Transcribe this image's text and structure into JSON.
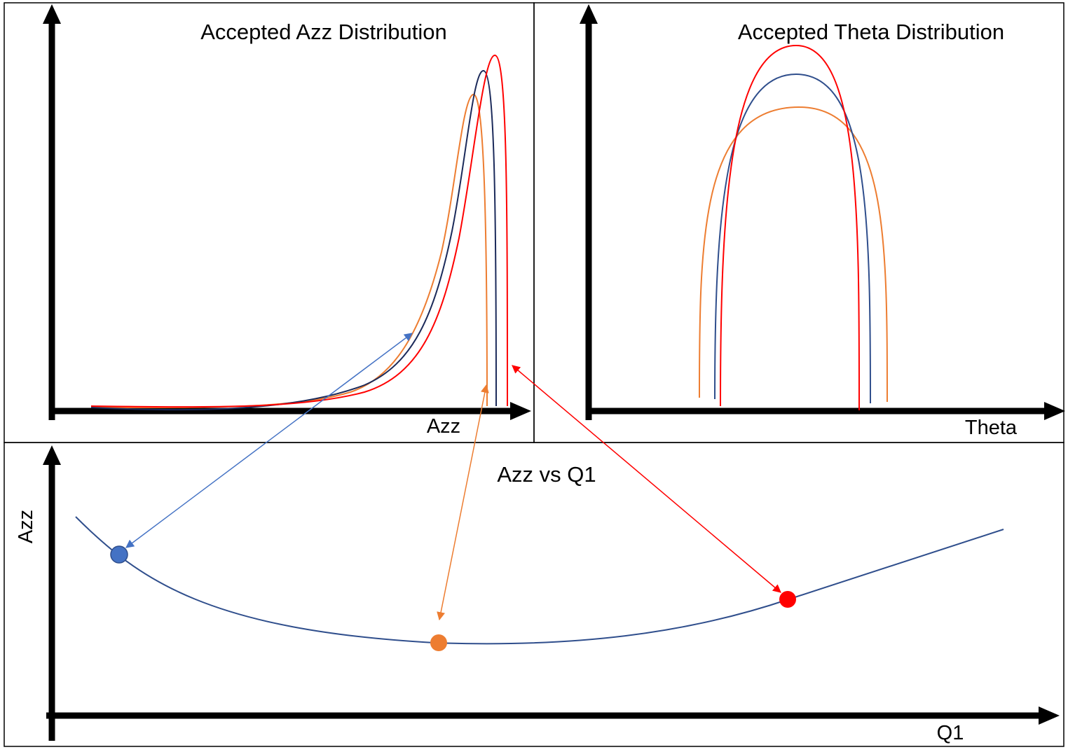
{
  "panels": {
    "azz_distribution": {
      "title": "Accepted Azz Distribution",
      "xlabel": "Azz"
    },
    "theta_distribution": {
      "title": "Accepted Theta Distribution",
      "xlabel": "Theta"
    },
    "azz_vs_q1": {
      "title": "Azz vs Q1",
      "xlabel": "Q1",
      "ylabel": "Azz"
    }
  },
  "colors": {
    "blue_curve": "#2f4e8c",
    "navy_curve": "#1b2a5a",
    "orange_curve": "#ed7d31",
    "red_curve": "#ff0000",
    "blue_point": "#4472c4",
    "blue_arrow": "#4472c4",
    "axis": "#000000",
    "frame": "#000000"
  },
  "icons": {
    "axis_arrowhead": "solid-triangle",
    "link_arrowhead": "open-triangle"
  }
}
